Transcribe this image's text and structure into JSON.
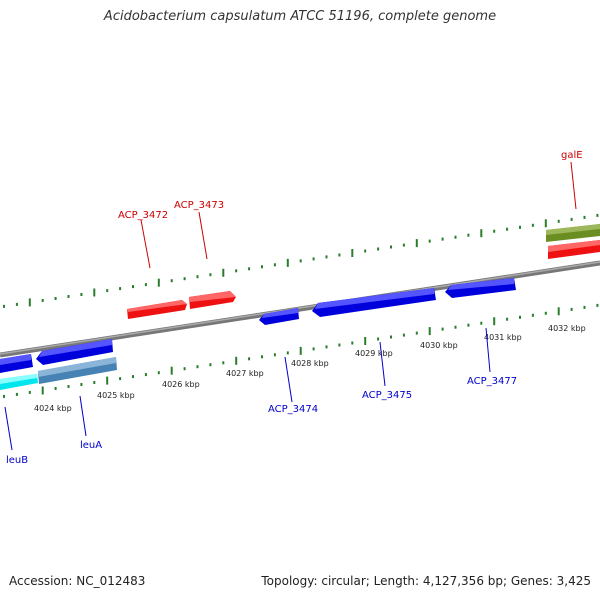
{
  "title": "Acidobacterium capsulatum ATCC 51196, complete genome",
  "footer": {
    "accession": "Accession: NC_012483",
    "stats": "Topology: circular; Length: 4,127,356 bp; Genes: 3,425"
  },
  "colors": {
    "forward_strand": "#ff0000",
    "reverse_strand": "#0000ff",
    "backbone": "#888888",
    "ticks": "#2a7d2a",
    "label_forward": "#cc0000",
    "label_reverse": "#0000cc",
    "gene_olive": "#6b8e23",
    "gene_cyan": "#00ffff",
    "gene_steel": "#4682b4"
  },
  "scale_labels": [
    "4024 kbp",
    "4025 kbp",
    "4026 kbp",
    "4027 kbp",
    "4028 kbp",
    "4029 kbp",
    "4030 kbp",
    "4031 kbp",
    "4032 kbp"
  ],
  "genes_forward": [
    "ACP_3472",
    "ACP_3473",
    "galE"
  ],
  "genes_reverse": [
    "leuB",
    "leuA",
    "ACP_3474",
    "ACP_3475",
    "ACP_3477"
  ]
}
